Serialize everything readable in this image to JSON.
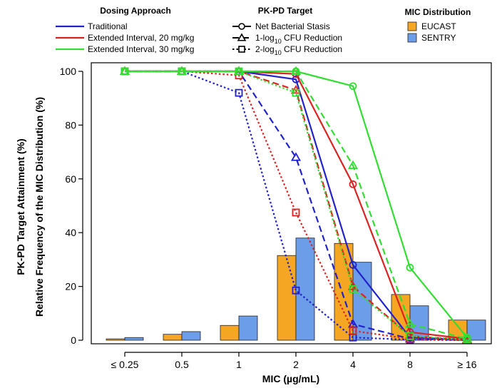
{
  "chart_data": {
    "type": "bar+line",
    "xlabel": "MIC (µg/mL)",
    "ylabel_primary": "PK-PD Target Attainment (%)",
    "ylabel_secondary": "Relative Frequency of the MIC Distribution (%)",
    "ylim": [
      0,
      100
    ],
    "yticks": [
      0,
      20,
      40,
      60,
      80,
      100
    ],
    "categories": [
      "≤ 0.25",
      "0.5",
      "1",
      "2",
      "4",
      "8",
      "≥ 16"
    ],
    "legend": {
      "dosing": {
        "title": "Dosing Approach",
        "items": [
          {
            "key": "traditional",
            "label": "Traditional",
            "color": "#2222cc"
          },
          {
            "key": "ext20",
            "label": "Extended Interval, 20 mg/kg",
            "color": "#dd2222"
          },
          {
            "key": "ext30",
            "label": "Extended Interval, 30 mg/kg",
            "color": "#33dd33"
          }
        ]
      },
      "target": {
        "title": "PK-PD Target",
        "items": [
          {
            "key": "stasis",
            "label_main": "Net Bacterial Stasis",
            "label_sub": "",
            "label_tail": "",
            "marker": "circle",
            "dash": "solid"
          },
          {
            "key": "log1",
            "label_main": "1-log",
            "label_sub": "10",
            "label_tail": " CFU Reduction",
            "marker": "triangle",
            "dash": "dashed"
          },
          {
            "key": "log2",
            "label_main": "2-log",
            "label_sub": "10",
            "label_tail": " CFU Reduction",
            "marker": "square",
            "dash": "dotted"
          }
        ]
      },
      "mic": {
        "title": "MIC Distribution",
        "items": [
          {
            "key": "eucast",
            "label": "EUCAST",
            "color": "#f5a623"
          },
          {
            "key": "sentry",
            "label": "SENTRY",
            "color": "#6b9de8"
          }
        ]
      }
    },
    "bars": [
      {
        "key": "eucast",
        "name": "EUCAST",
        "color": "#f5a623",
        "values": [
          0.5,
          2.2,
          5.5,
          31.5,
          36.0,
          17.0,
          7.5
        ]
      },
      {
        "key": "sentry",
        "name": "SENTRY",
        "color": "#6b9de8",
        "values": [
          1.0,
          3.2,
          9.0,
          38.0,
          29.0,
          12.8,
          7.5
        ]
      }
    ],
    "lines": [
      {
        "dosing": "traditional",
        "target": "stasis",
        "color": "#2222cc",
        "dash": "solid",
        "marker": "circle",
        "values": [
          100,
          100,
          100,
          97,
          28,
          1,
          0.2
        ]
      },
      {
        "dosing": "traditional",
        "target": "log1",
        "color": "#2222cc",
        "dash": "dashed",
        "marker": "triangle",
        "values": [
          100,
          100,
          100,
          68,
          6,
          0.5,
          0.1
        ]
      },
      {
        "dosing": "traditional",
        "target": "log2",
        "color": "#2222cc",
        "dash": "dotted",
        "marker": "square",
        "values": [
          100,
          100,
          92,
          18.5,
          1,
          0.2,
          0
        ]
      },
      {
        "dosing": "ext20",
        "target": "stasis",
        "color": "#dd2222",
        "dash": "solid",
        "marker": "circle",
        "values": [
          100,
          100,
          100,
          99,
          58,
          3,
          0.5
        ]
      },
      {
        "dosing": "ext20",
        "target": "log1",
        "color": "#dd2222",
        "dash": "dashed",
        "marker": "triangle",
        "values": [
          100,
          100,
          100,
          93,
          20,
          1.5,
          0.2
        ]
      },
      {
        "dosing": "ext20",
        "target": "log2",
        "color": "#dd2222",
        "dash": "dotted",
        "marker": "square",
        "values": [
          100,
          100,
          98.5,
          47.5,
          3.5,
          0.5,
          0
        ]
      },
      {
        "dosing": "ext30",
        "target": "stasis",
        "color": "#33dd33",
        "dash": "solid",
        "marker": "circle",
        "values": [
          100,
          100,
          100,
          100,
          94.5,
          27,
          1
        ]
      },
      {
        "dosing": "ext30",
        "target": "log1",
        "color": "#33dd33",
        "dash": "dashed",
        "marker": "triangle",
        "values": [
          100,
          100,
          100,
          100,
          65,
          6,
          0.5
        ]
      },
      {
        "dosing": "ext30",
        "target": "log2",
        "color": "#33dd33",
        "dash": "dotted",
        "marker": "square",
        "values": [
          100,
          100,
          100,
          92,
          19,
          1.5,
          0.2
        ]
      }
    ]
  }
}
